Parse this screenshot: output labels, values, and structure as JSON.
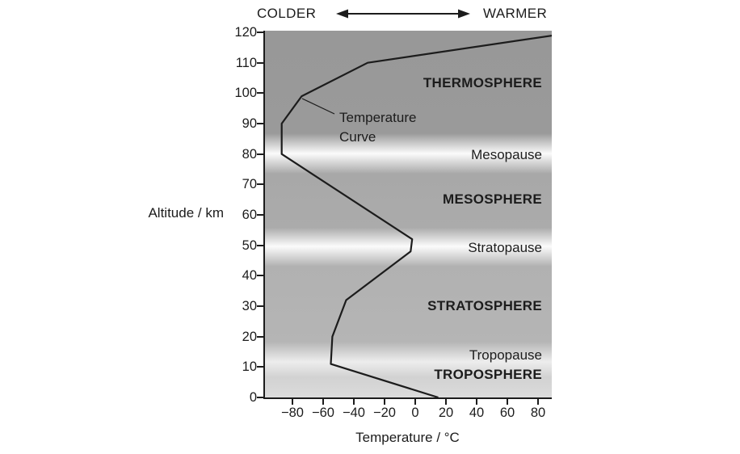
{
  "header": {
    "colder_label": "COLDER",
    "warmer_label": "WARMER",
    "arrow_icon": "double-headed-horizontal-arrow"
  },
  "axes": {
    "y": {
      "title": "Altitude / km",
      "tick_labels": [
        "120",
        "110",
        "100",
        "90",
        "80",
        "70",
        "60",
        "50",
        "40",
        "30",
        "20",
        "10",
        "0"
      ]
    },
    "x": {
      "title": "Temperature / °C",
      "tick_labels": [
        "−80",
        "−60",
        "−40",
        "−20",
        "0",
        "20",
        "40",
        "60",
        "80"
      ]
    }
  },
  "annotation": {
    "line1": "Temperature",
    "line2": "Curve"
  },
  "regions": {
    "thermosphere": "THERMOSPHERE",
    "mesopause": "Mesopause",
    "mesosphere": "MESOSPHERE",
    "stratopause": "Stratopause",
    "stratosphere": "STRATOSPHERE",
    "tropopause": "Tropopause",
    "troposphere": "TROPOSPHERE"
  },
  "colors": {
    "thermosphere_gray": "#9a9a9a",
    "mesosphere_gray": "#a9a9a9",
    "stratosphere_gray": "#b3b3b3",
    "troposphere_gray": "#d8d8d8",
    "pause_band_white": "#fbfbfb",
    "curve_black": "#1c1c1c",
    "text_black": "#1c1c1c"
  },
  "chart_data": {
    "type": "line",
    "title": "Atmospheric temperature profile by altitude",
    "xlabel": "Temperature / °C",
    "ylabel": "Altitude / km",
    "xlim": [
      -97,
      90
    ],
    "ylim": [
      0,
      120.5
    ],
    "x_ticks": [
      -80,
      -60,
      -40,
      -20,
      0,
      20,
      40,
      60,
      80
    ],
    "y_ticks": [
      0,
      10,
      20,
      30,
      40,
      50,
      60,
      70,
      80,
      90,
      100,
      110,
      120
    ],
    "grid": false,
    "legend": "none",
    "series": [
      {
        "name": "Temperature Curve",
        "points_temp_c_alt_km": [
          [
            15,
            0
          ],
          [
            -55,
            11
          ],
          [
            -54,
            20
          ],
          [
            -45,
            32
          ],
          [
            -3,
            48
          ],
          [
            -2,
            52
          ],
          [
            -87,
            80
          ],
          [
            -87,
            90
          ],
          [
            -74,
            99
          ],
          [
            -31,
            110
          ],
          [
            90,
            119
          ]
        ]
      }
    ],
    "layer_bands": [
      {
        "name": "THERMOSPHERE",
        "alt_range_km": [
          84,
          120
        ],
        "shade": "dark gray"
      },
      {
        "name": "Mesopause",
        "alt_km": 80,
        "shade": "white band"
      },
      {
        "name": "MESOSPHERE",
        "alt_range_km": [
          55,
          76
        ],
        "shade": "gray"
      },
      {
        "name": "Stratopause",
        "alt_km": 50,
        "shade": "white band"
      },
      {
        "name": "STRATOSPHERE",
        "alt_range_km": [
          15,
          45
        ],
        "shade": "gray"
      },
      {
        "name": "Tropopause",
        "alt_km": 12,
        "shade": "light band"
      },
      {
        "name": "TROPOSPHERE",
        "alt_range_km": [
          0,
          9
        ],
        "shade": "light gray"
      }
    ]
  }
}
